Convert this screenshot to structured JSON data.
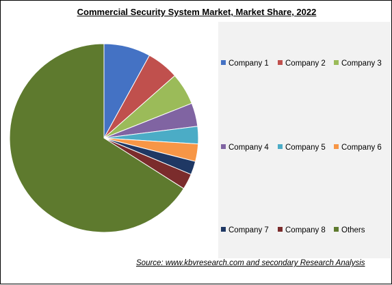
{
  "chart_data": {
    "type": "pie",
    "title": "Commercial Security System Market, Market Share, 2022",
    "slices": [
      {
        "name": "Company 1",
        "value": 8,
        "color": "#4472c4"
      },
      {
        "name": "Company 2",
        "value": 5.5,
        "color": "#c0504d"
      },
      {
        "name": "Company 3",
        "value": 5.5,
        "color": "#9bbb59"
      },
      {
        "name": "Company 4",
        "value": 4,
        "color": "#8064a2"
      },
      {
        "name": "Company 5",
        "value": 3,
        "color": "#4bacc6"
      },
      {
        "name": "Company 6",
        "value": 3,
        "color": "#f79646"
      },
      {
        "name": "Company 7",
        "value": 2.3,
        "color": "#1f3864"
      },
      {
        "name": "Company 8",
        "value": 2.7,
        "color": "#7b2c2c"
      },
      {
        "name": "Others",
        "value": 66,
        "color": "#5e7a2e"
      }
    ],
    "legend_placement": "right",
    "start_angle": "top, clockwise"
  },
  "source_note": "Source: www.kbvresearch.com  and secondary Research Analysis"
}
